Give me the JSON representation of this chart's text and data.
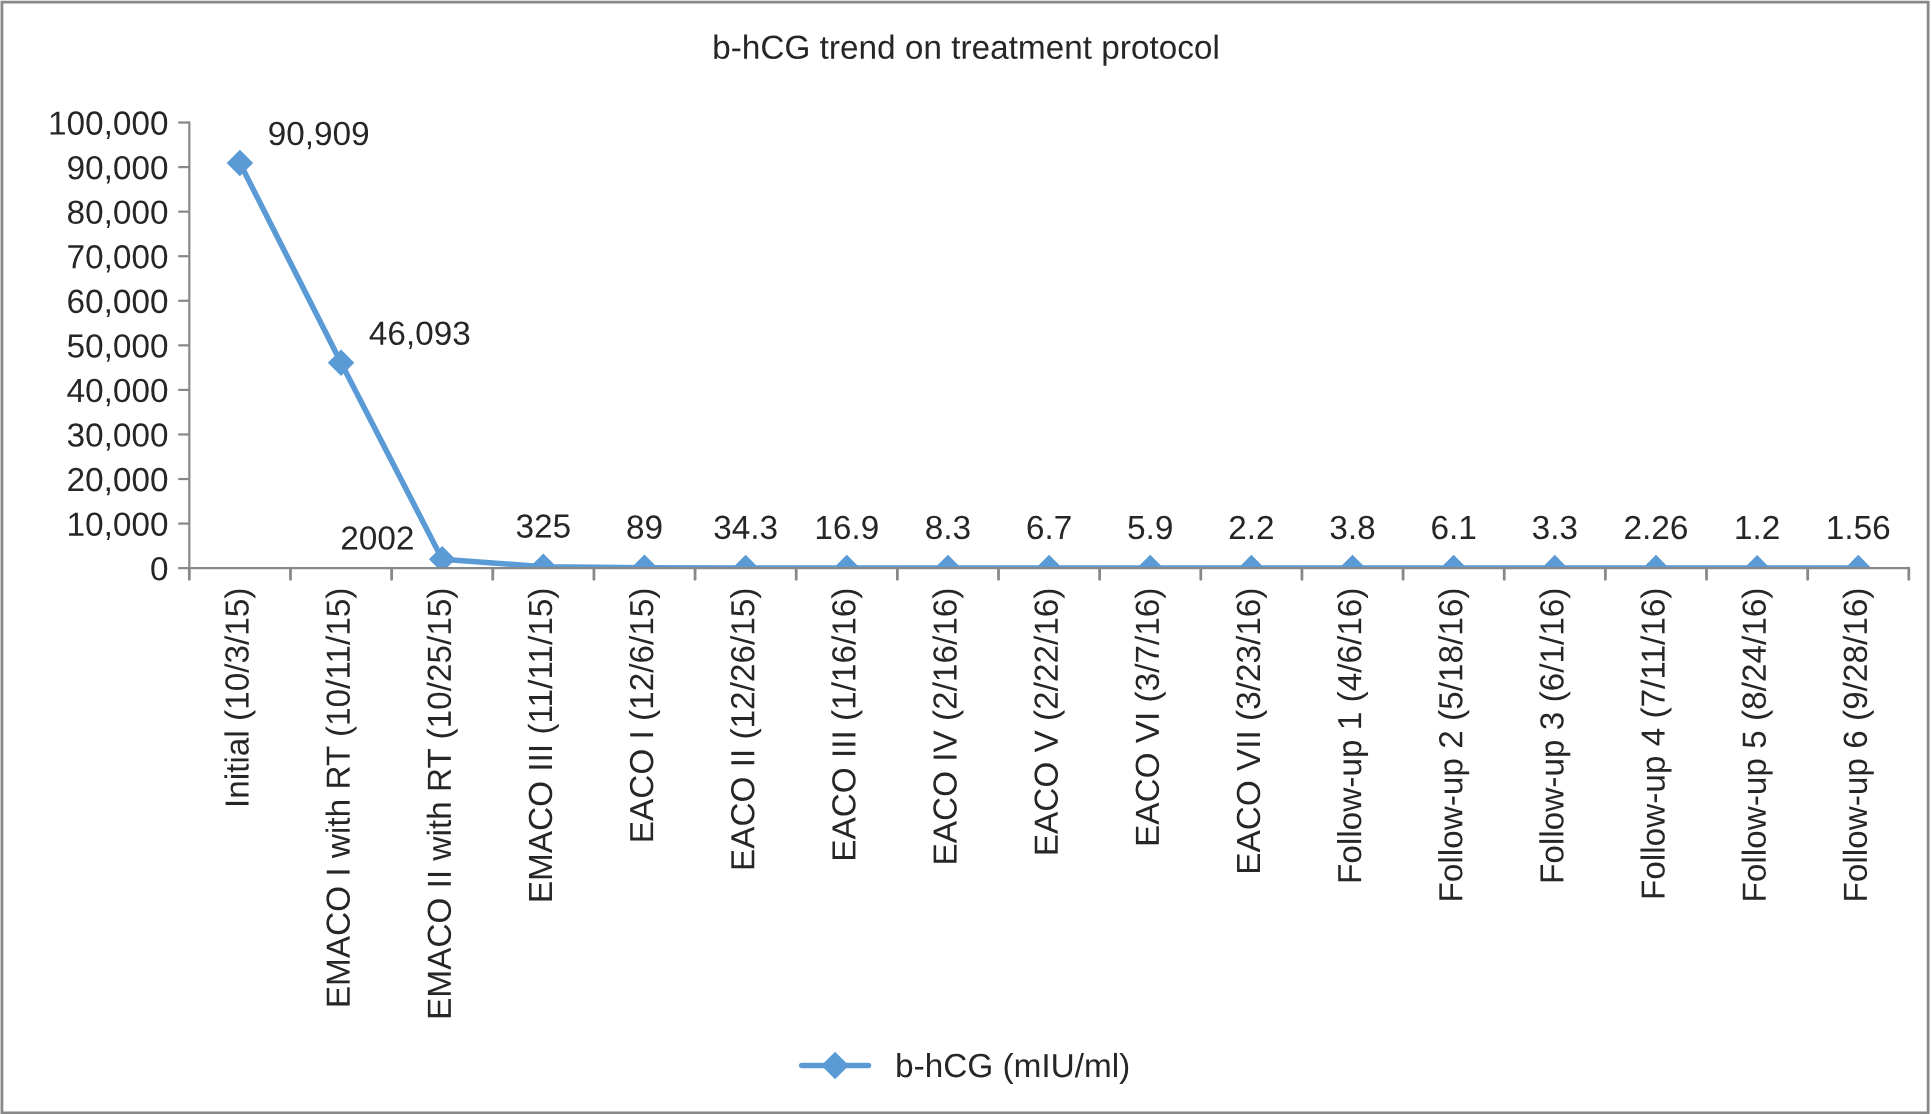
{
  "chart_data": {
    "type": "line",
    "title": "b-hCG trend on treatment protocol",
    "categories": [
      "Initial (10/3/15)",
      "EMACO I with RT (10/11/15)",
      "EMACO II with RT (10/25/15)",
      "EMACO III (11/11/15)",
      "EACO I (12/6/15)",
      "EACO II (12/26/15)",
      "EACO III (1/16/16)",
      "EACO IV (2/16/16)",
      "EACO V (2/22/16)",
      "EACO VI (3/7/16)",
      "EACO VII (3/23/16)",
      "Follow-up 1 (4/6/16)",
      "Follow-up 2 (5/18/16)",
      "Follow-up 3 (6/1/16)",
      "Follow-up 4 (7/11/16)",
      "Follow-up 5 (8/24/16)",
      "Follow-up 6 (9/28/16)"
    ],
    "series": [
      {
        "name": "b-hCG (mIU/ml)",
        "color": "#5b9bd5",
        "values": [
          90909,
          46093,
          2002,
          325,
          89,
          34.3,
          16.9,
          8.3,
          6.7,
          5.9,
          2.2,
          3.8,
          6.1,
          3.3,
          2.26,
          1.2,
          1.56
        ],
        "value_labels": [
          "90,909",
          "46,093",
          "2002",
          "325",
          "89",
          "34.3",
          "16.9",
          "8.3",
          "6.7",
          "5.9",
          "2.2",
          "3.8",
          "6.1",
          "3.3",
          "2.26",
          "1.2",
          "1.56"
        ]
      }
    ],
    "ylim": [
      0,
      100000
    ],
    "yticks": [
      {
        "value": 0,
        "label": "0"
      },
      {
        "value": 10000,
        "label": "10,000"
      },
      {
        "value": 20000,
        "label": "20,000"
      },
      {
        "value": 30000,
        "label": "30,000"
      },
      {
        "value": 40000,
        "label": "40,000"
      },
      {
        "value": 50000,
        "label": "50,000"
      },
      {
        "value": 60000,
        "label": "60,000"
      },
      {
        "value": 70000,
        "label": "70,000"
      },
      {
        "value": 80000,
        "label": "80,000"
      },
      {
        "value": 90000,
        "label": "90,000"
      },
      {
        "value": 100000,
        "label": "100,000"
      }
    ],
    "marker": "diamond",
    "line_style": "solid",
    "grid": false,
    "legend": "bottom"
  }
}
